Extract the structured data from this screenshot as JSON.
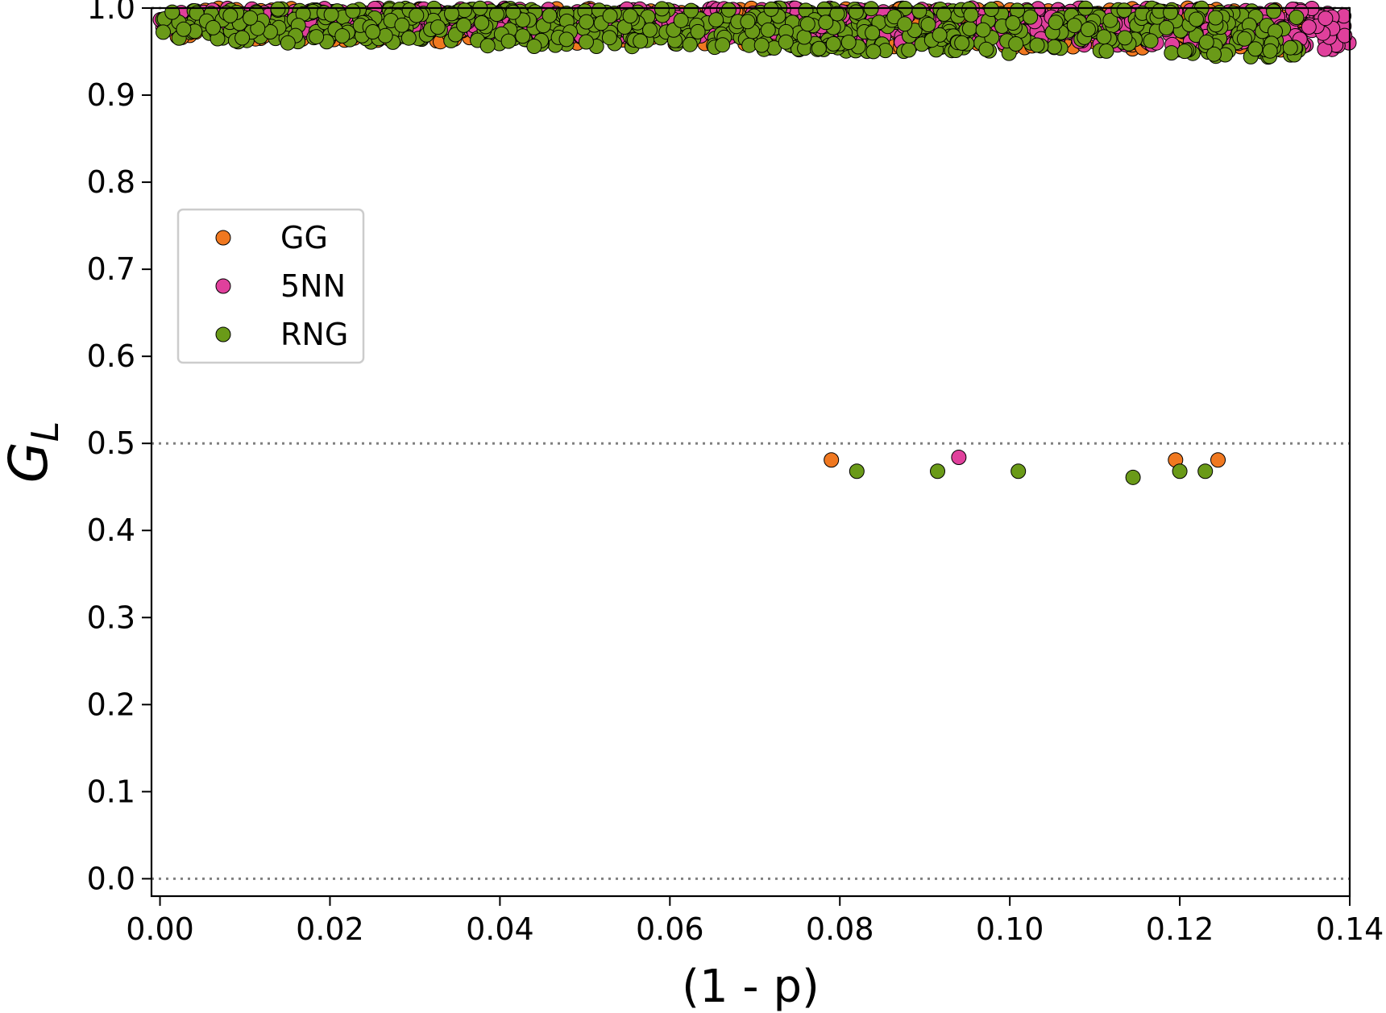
{
  "chart_data": {
    "type": "scatter",
    "xlabel": "(1 - p)",
    "ylabel_main": "G",
    "ylabel_sub": "L",
    "xlim": [
      -0.001,
      0.14
    ],
    "ylim": [
      -0.02,
      1.0
    ],
    "xticks": [
      "0.00",
      "0.02",
      "0.04",
      "0.06",
      "0.08",
      "0.10",
      "0.12",
      "0.14"
    ],
    "xtick_values": [
      0.0,
      0.02,
      0.04,
      0.06,
      0.08,
      0.1,
      0.12,
      0.14
    ],
    "yticks": [
      "0.0",
      "0.1",
      "0.2",
      "0.3",
      "0.4",
      "0.5",
      "0.6",
      "0.7",
      "0.8",
      "0.9",
      "1.0"
    ],
    "ytick_values": [
      0.0,
      0.1,
      0.2,
      0.3,
      0.4,
      0.5,
      0.6,
      0.7,
      0.8,
      0.9,
      1.0
    ],
    "reference_lines_y": [
      0.0,
      0.5,
      1.0
    ],
    "grid": false,
    "legend_position": "upper-left",
    "series": [
      {
        "name": "GG",
        "color": "#f07820",
        "band": {
          "x_range": [
            0.0,
            0.135
          ],
          "y_top": 1.0,
          "y_bottom_start": 0.965,
          "y_bottom_end": 0.95
        },
        "outliers": [
          [
            0.079,
            0.481
          ],
          [
            0.1195,
            0.481
          ],
          [
            0.1245,
            0.481
          ]
        ]
      },
      {
        "name": "5NN",
        "color": "#e0409c",
        "band": {
          "x_range": [
            0.0,
            0.14
          ],
          "y_top": 1.0,
          "y_bottom_start": 0.975,
          "y_bottom_end": 0.952
        },
        "outliers": [
          [
            0.094,
            0.484
          ]
        ]
      },
      {
        "name": "RNG",
        "color": "#6a9a18",
        "band": {
          "x_range": [
            0.0,
            0.134
          ],
          "y_top": 1.0,
          "y_bottom_start": 0.962,
          "y_bottom_end": 0.943
        },
        "outliers": [
          [
            0.082,
            0.468
          ],
          [
            0.0915,
            0.468
          ],
          [
            0.101,
            0.468
          ],
          [
            0.1145,
            0.461
          ],
          [
            0.12,
            0.468
          ],
          [
            0.123,
            0.468
          ]
        ]
      }
    ]
  }
}
